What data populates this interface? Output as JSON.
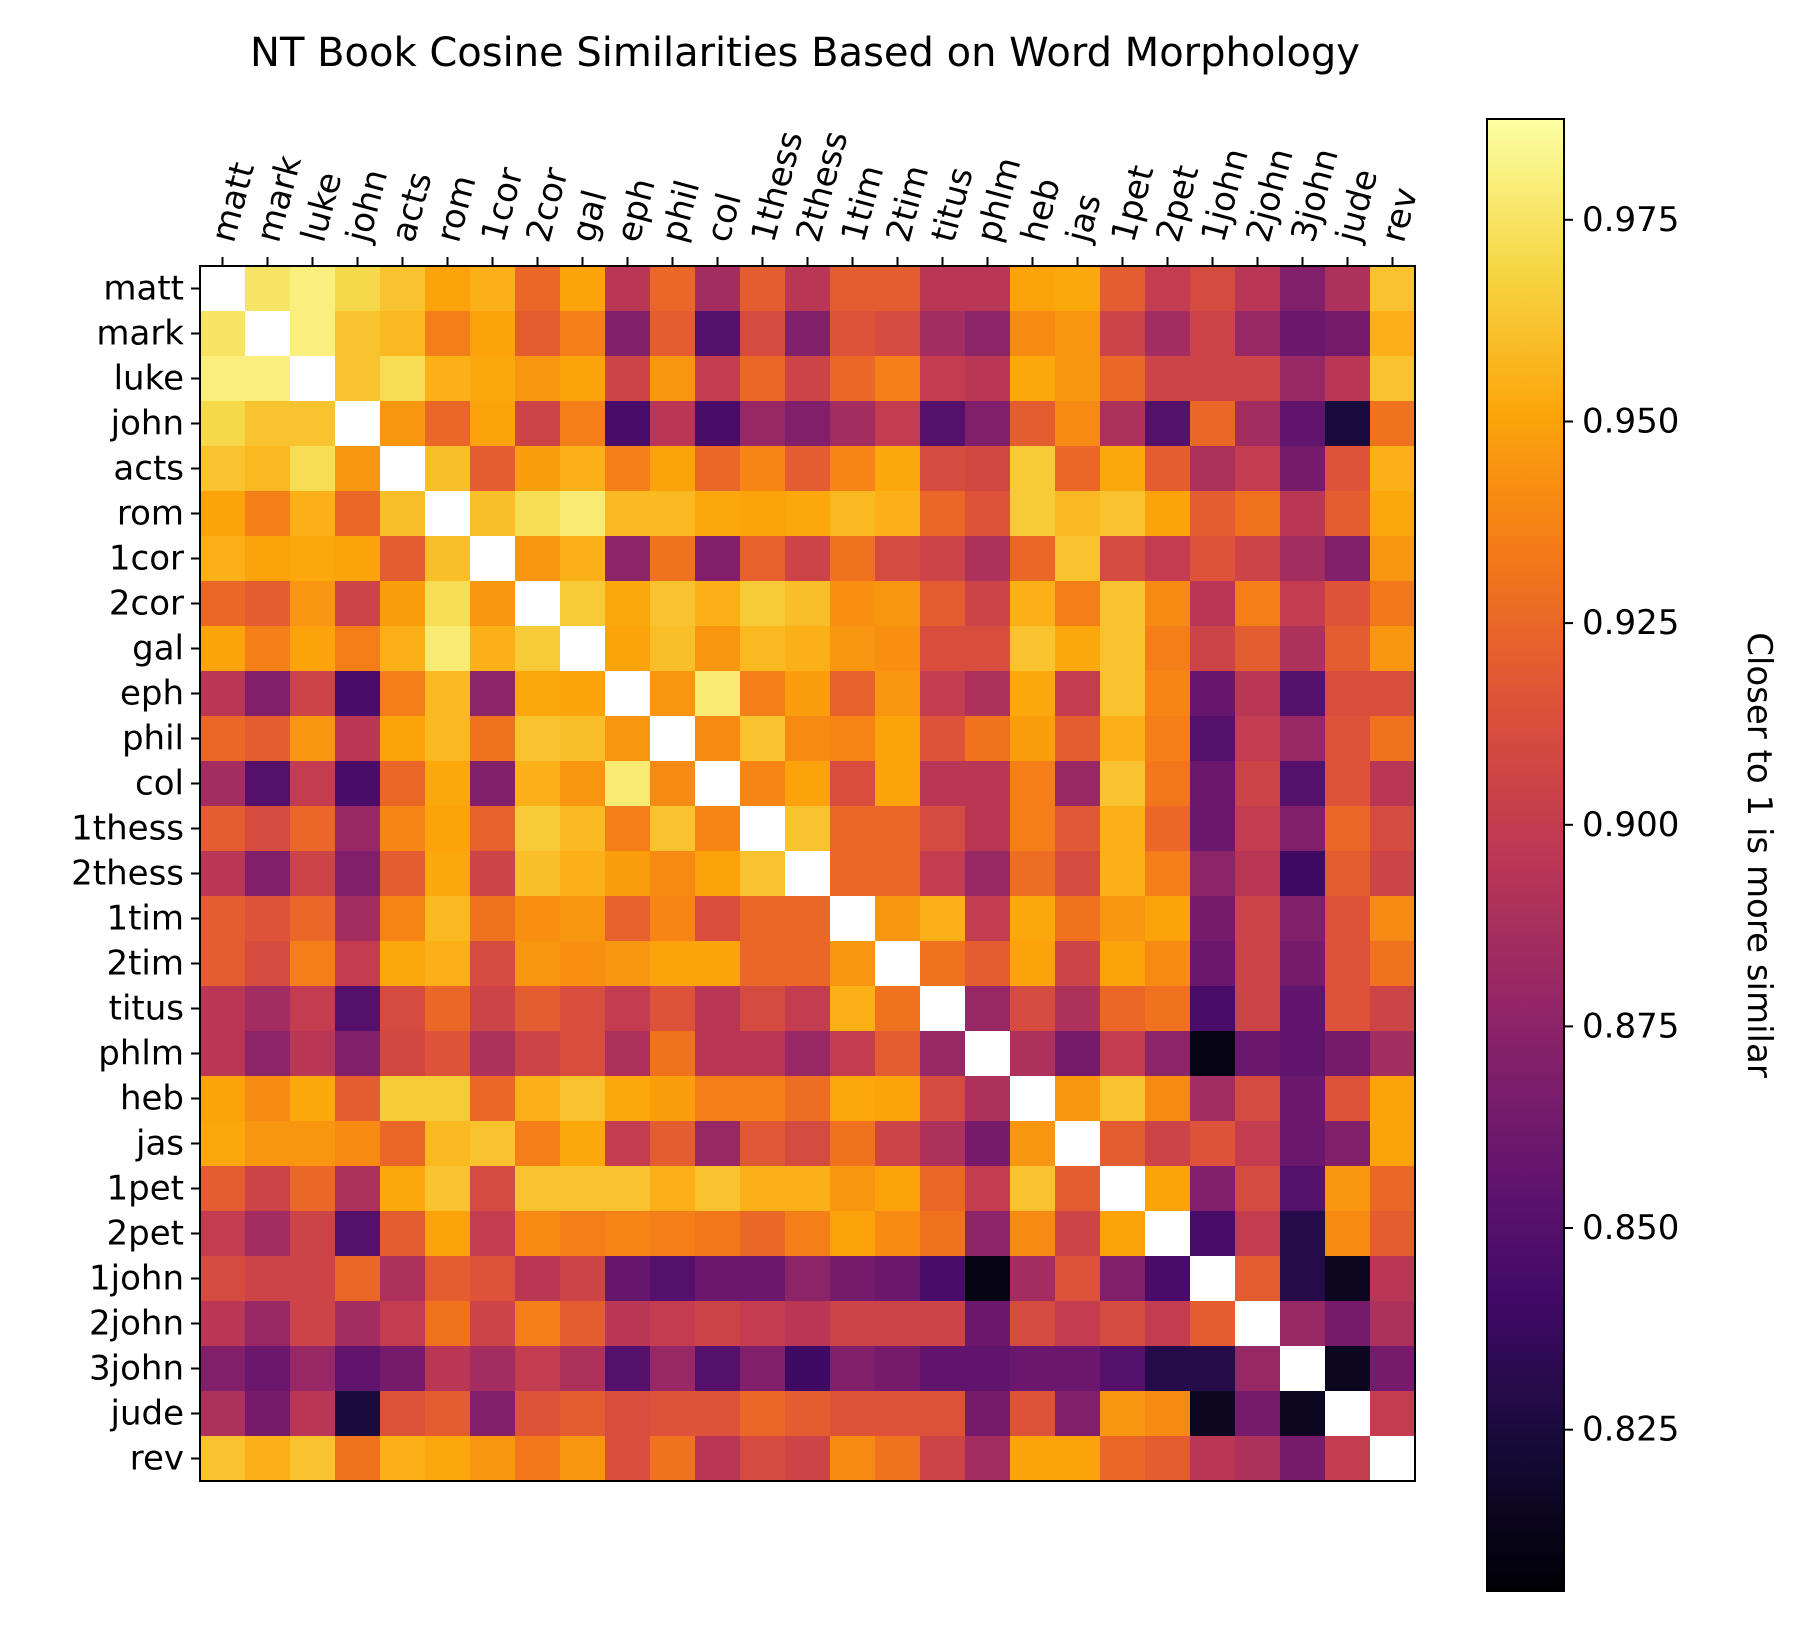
{
  "chart_data": {
    "type": "heatmap",
    "title": "NT Book Cosine Similarities Based on Word Morphology",
    "labels": [
      "matt",
      "mark",
      "luke",
      "john",
      "acts",
      "rom",
      "1cor",
      "2cor",
      "gal",
      "eph",
      "phil",
      "col",
      "1thess",
      "2thess",
      "1tim",
      "2tim",
      "titus",
      "phlm",
      "heb",
      "jas",
      "1pet",
      "2pet",
      "1john",
      "2john",
      "3john",
      "jude",
      "rev"
    ],
    "values": [
      [
        1.0,
        0.975,
        0.98,
        0.97,
        0.962,
        0.95,
        0.955,
        0.925,
        0.95,
        0.895,
        0.925,
        0.885,
        0.92,
        0.895,
        0.92,
        0.92,
        0.895,
        0.895,
        0.95,
        0.952,
        0.92,
        0.9,
        0.91,
        0.895,
        0.87,
        0.89,
        0.962
      ],
      [
        0.975,
        1.0,
        0.98,
        0.962,
        0.958,
        0.935,
        0.95,
        0.92,
        0.935,
        0.87,
        0.92,
        0.85,
        0.91,
        0.87,
        0.915,
        0.91,
        0.885,
        0.875,
        0.94,
        0.945,
        0.905,
        0.885,
        0.905,
        0.88,
        0.86,
        0.865,
        0.955
      ],
      [
        0.98,
        0.98,
        1.0,
        0.962,
        0.972,
        0.955,
        0.952,
        0.945,
        0.95,
        0.905,
        0.945,
        0.9,
        0.925,
        0.905,
        0.925,
        0.935,
        0.9,
        0.895,
        0.952,
        0.945,
        0.925,
        0.905,
        0.905,
        0.905,
        0.88,
        0.895,
        0.962
      ],
      [
        0.97,
        0.962,
        0.962,
        1.0,
        0.945,
        0.925,
        0.95,
        0.905,
        0.935,
        0.845,
        0.895,
        0.845,
        0.88,
        0.87,
        0.885,
        0.9,
        0.85,
        0.87,
        0.92,
        0.94,
        0.89,
        0.85,
        0.925,
        0.885,
        0.855,
        0.825,
        0.93
      ],
      [
        0.962,
        0.958,
        0.972,
        0.945,
        1.0,
        0.96,
        0.92,
        0.948,
        0.955,
        0.935,
        0.95,
        0.925,
        0.938,
        0.92,
        0.938,
        0.952,
        0.91,
        0.908,
        0.965,
        0.925,
        0.952,
        0.92,
        0.89,
        0.9,
        0.865,
        0.915,
        0.955
      ],
      [
        0.95,
        0.935,
        0.955,
        0.925,
        0.96,
        1.0,
        0.96,
        0.972,
        0.978,
        0.958,
        0.958,
        0.952,
        0.95,
        0.952,
        0.958,
        0.955,
        0.925,
        0.915,
        0.965,
        0.958,
        0.962,
        0.95,
        0.92,
        0.93,
        0.895,
        0.92,
        0.952
      ],
      [
        0.955,
        0.95,
        0.952,
        0.95,
        0.92,
        0.96,
        1.0,
        0.945,
        0.955,
        0.875,
        0.93,
        0.87,
        0.922,
        0.905,
        0.93,
        0.91,
        0.905,
        0.89,
        0.925,
        0.962,
        0.91,
        0.9,
        0.915,
        0.905,
        0.885,
        0.87,
        0.945
      ],
      [
        0.925,
        0.92,
        0.945,
        0.905,
        0.948,
        0.972,
        0.945,
        1.0,
        0.965,
        0.952,
        0.962,
        0.955,
        0.965,
        0.96,
        0.942,
        0.945,
        0.92,
        0.905,
        0.955,
        0.935,
        0.962,
        0.94,
        0.895,
        0.935,
        0.9,
        0.915,
        0.932
      ],
      [
        0.95,
        0.935,
        0.95,
        0.935,
        0.955,
        0.978,
        0.955,
        0.965,
        1.0,
        0.95,
        0.96,
        0.945,
        0.958,
        0.955,
        0.945,
        0.942,
        0.912,
        0.912,
        0.962,
        0.952,
        0.962,
        0.935,
        0.905,
        0.92,
        0.89,
        0.92,
        0.945
      ],
      [
        0.895,
        0.87,
        0.905,
        0.845,
        0.935,
        0.958,
        0.875,
        0.952,
        0.95,
        1.0,
        0.945,
        0.978,
        0.935,
        0.948,
        0.922,
        0.945,
        0.9,
        0.89,
        0.952,
        0.9,
        0.962,
        0.938,
        0.858,
        0.895,
        0.85,
        0.912,
        0.912
      ],
      [
        0.925,
        0.92,
        0.945,
        0.895,
        0.95,
        0.958,
        0.93,
        0.962,
        0.96,
        0.945,
        1.0,
        0.94,
        0.962,
        0.94,
        0.938,
        0.95,
        0.915,
        0.93,
        0.948,
        0.92,
        0.955,
        0.935,
        0.85,
        0.9,
        0.88,
        0.915,
        0.93
      ],
      [
        0.885,
        0.85,
        0.9,
        0.845,
        0.925,
        0.952,
        0.87,
        0.955,
        0.945,
        0.978,
        0.94,
        1.0,
        0.938,
        0.95,
        0.912,
        0.95,
        0.895,
        0.895,
        0.935,
        0.88,
        0.962,
        0.932,
        0.86,
        0.905,
        0.85,
        0.915,
        0.895
      ],
      [
        0.92,
        0.91,
        0.925,
        0.88,
        0.938,
        0.95,
        0.922,
        0.965,
        0.958,
        0.935,
        0.962,
        0.938,
        1.0,
        0.962,
        0.925,
        0.925,
        0.91,
        0.895,
        0.935,
        0.918,
        0.955,
        0.925,
        0.86,
        0.9,
        0.87,
        0.925,
        0.91
      ],
      [
        0.895,
        0.87,
        0.905,
        0.87,
        0.92,
        0.952,
        0.905,
        0.96,
        0.955,
        0.948,
        0.94,
        0.95,
        0.962,
        1.0,
        0.925,
        0.925,
        0.9,
        0.88,
        0.928,
        0.91,
        0.955,
        0.935,
        0.875,
        0.895,
        0.84,
        0.92,
        0.905
      ],
      [
        0.92,
        0.915,
        0.925,
        0.885,
        0.938,
        0.958,
        0.93,
        0.942,
        0.945,
        0.922,
        0.938,
        0.912,
        0.925,
        0.925,
        1.0,
        0.945,
        0.955,
        0.9,
        0.952,
        0.93,
        0.945,
        0.95,
        0.865,
        0.905,
        0.87,
        0.915,
        0.94
      ],
      [
        0.92,
        0.91,
        0.935,
        0.9,
        0.952,
        0.955,
        0.91,
        0.945,
        0.942,
        0.945,
        0.95,
        0.95,
        0.925,
        0.925,
        0.945,
        1.0,
        0.93,
        0.92,
        0.95,
        0.905,
        0.95,
        0.94,
        0.86,
        0.905,
        0.865,
        0.915,
        0.93
      ],
      [
        0.895,
        0.885,
        0.9,
        0.85,
        0.91,
        0.925,
        0.905,
        0.92,
        0.912,
        0.9,
        0.915,
        0.895,
        0.91,
        0.9,
        0.955,
        0.93,
        1.0,
        0.88,
        0.91,
        0.89,
        0.925,
        0.93,
        0.845,
        0.905,
        0.855,
        0.915,
        0.905
      ],
      [
        0.895,
        0.875,
        0.895,
        0.87,
        0.908,
        0.915,
        0.89,
        0.905,
        0.912,
        0.89,
        0.93,
        0.895,
        0.895,
        0.88,
        0.9,
        0.92,
        0.88,
        1.0,
        0.89,
        0.865,
        0.9,
        0.875,
        0.81,
        0.86,
        0.855,
        0.865,
        0.885
      ],
      [
        0.95,
        0.94,
        0.952,
        0.92,
        0.965,
        0.965,
        0.925,
        0.955,
        0.962,
        0.952,
        0.948,
        0.935,
        0.935,
        0.928,
        0.952,
        0.95,
        0.91,
        0.89,
        1.0,
        0.945,
        0.962,
        0.94,
        0.885,
        0.91,
        0.86,
        0.915,
        0.95
      ],
      [
        0.952,
        0.945,
        0.945,
        0.94,
        0.925,
        0.958,
        0.962,
        0.935,
        0.952,
        0.9,
        0.92,
        0.88,
        0.918,
        0.91,
        0.93,
        0.905,
        0.89,
        0.865,
        0.945,
        1.0,
        0.92,
        0.905,
        0.915,
        0.9,
        0.86,
        0.87,
        0.95
      ],
      [
        0.92,
        0.905,
        0.925,
        0.89,
        0.952,
        0.962,
        0.91,
        0.962,
        0.962,
        0.962,
        0.955,
        0.962,
        0.955,
        0.955,
        0.945,
        0.95,
        0.925,
        0.9,
        0.962,
        0.92,
        1.0,
        0.95,
        0.87,
        0.91,
        0.85,
        0.945,
        0.925
      ],
      [
        0.9,
        0.885,
        0.905,
        0.85,
        0.92,
        0.95,
        0.9,
        0.94,
        0.935,
        0.938,
        0.935,
        0.932,
        0.925,
        0.935,
        0.95,
        0.94,
        0.93,
        0.875,
        0.94,
        0.905,
        0.95,
        1.0,
        0.845,
        0.9,
        0.83,
        0.94,
        0.92
      ],
      [
        0.91,
        0.905,
        0.905,
        0.925,
        0.89,
        0.92,
        0.915,
        0.895,
        0.905,
        0.858,
        0.85,
        0.86,
        0.86,
        0.875,
        0.865,
        0.86,
        0.845,
        0.81,
        0.885,
        0.915,
        0.87,
        0.845,
        1.0,
        0.92,
        0.83,
        0.815,
        0.895
      ],
      [
        0.895,
        0.88,
        0.905,
        0.885,
        0.9,
        0.93,
        0.905,
        0.935,
        0.92,
        0.895,
        0.9,
        0.905,
        0.9,
        0.895,
        0.905,
        0.905,
        0.905,
        0.86,
        0.91,
        0.9,
        0.91,
        0.9,
        0.92,
        1.0,
        0.88,
        0.865,
        0.89
      ],
      [
        0.87,
        0.86,
        0.88,
        0.855,
        0.865,
        0.895,
        0.885,
        0.9,
        0.89,
        0.85,
        0.88,
        0.85,
        0.87,
        0.84,
        0.87,
        0.865,
        0.855,
        0.855,
        0.86,
        0.86,
        0.85,
        0.83,
        0.83,
        0.88,
        1.0,
        0.815,
        0.865
      ],
      [
        0.89,
        0.865,
        0.895,
        0.825,
        0.915,
        0.92,
        0.87,
        0.915,
        0.92,
        0.912,
        0.915,
        0.915,
        0.925,
        0.92,
        0.915,
        0.915,
        0.915,
        0.865,
        0.915,
        0.87,
        0.945,
        0.94,
        0.815,
        0.865,
        0.815,
        1.0,
        0.9
      ],
      [
        0.962,
        0.955,
        0.962,
        0.93,
        0.955,
        0.952,
        0.945,
        0.932,
        0.945,
        0.912,
        0.93,
        0.895,
        0.91,
        0.905,
        0.94,
        0.93,
        0.905,
        0.885,
        0.95,
        0.95,
        0.925,
        0.92,
        0.895,
        0.89,
        0.865,
        0.9,
        1.0
      ]
    ],
    "colorbar": {
      "label": "Closer to 1 is more similar",
      "vmin": 0.805,
      "vmax": 0.9875,
      "ticks": [
        0.825,
        0.85,
        0.875,
        0.9,
        0.925,
        0.95,
        0.975
      ],
      "tick_labels": [
        "0.825",
        "0.850",
        "0.875",
        "0.900",
        "0.925",
        "0.950",
        "0.975"
      ],
      "colormap": "inferno"
    },
    "diagonal_color": "#ffffff",
    "grid": false
  }
}
